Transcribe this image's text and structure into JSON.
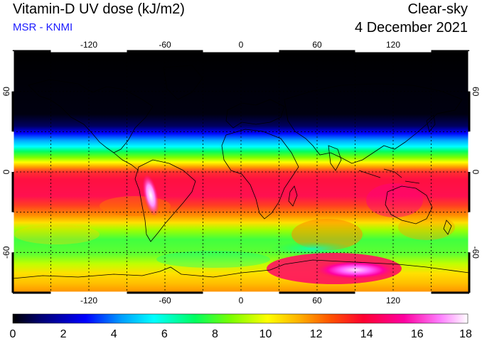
{
  "header": {
    "title": "Vitamin-D UV dose (kJ/m2)",
    "subtitle": "MSR - KNMI",
    "sky_type": "Clear-sky",
    "date": "4 December 2021"
  },
  "map": {
    "lon_ticks": [
      "-120",
      "-60",
      "0",
      "60",
      "120"
    ],
    "lat_ticks_left": [
      "60",
      "0",
      "-60"
    ],
    "lat_ticks_right": [
      "60",
      "0",
      "-60"
    ],
    "lon_range": [
      -180,
      180
    ],
    "lat_range": [
      -90,
      90
    ],
    "grid": "dotted, 30 degree spacing"
  },
  "colorbar": {
    "labels": [
      "0",
      "2",
      "4",
      "6",
      "8",
      "10",
      "12",
      "14",
      "16",
      "18"
    ],
    "range": [
      0,
      18
    ],
    "colors": [
      "#000000",
      "#000070",
      "#0000ff",
      "#00a0ff",
      "#00ffff",
      "#00ff60",
      "#7cff00",
      "#ffff00",
      "#ffb000",
      "#ff5000",
      "#ff0030",
      "#ff00a0",
      "#ff80ff",
      "#ffffff"
    ]
  }
}
